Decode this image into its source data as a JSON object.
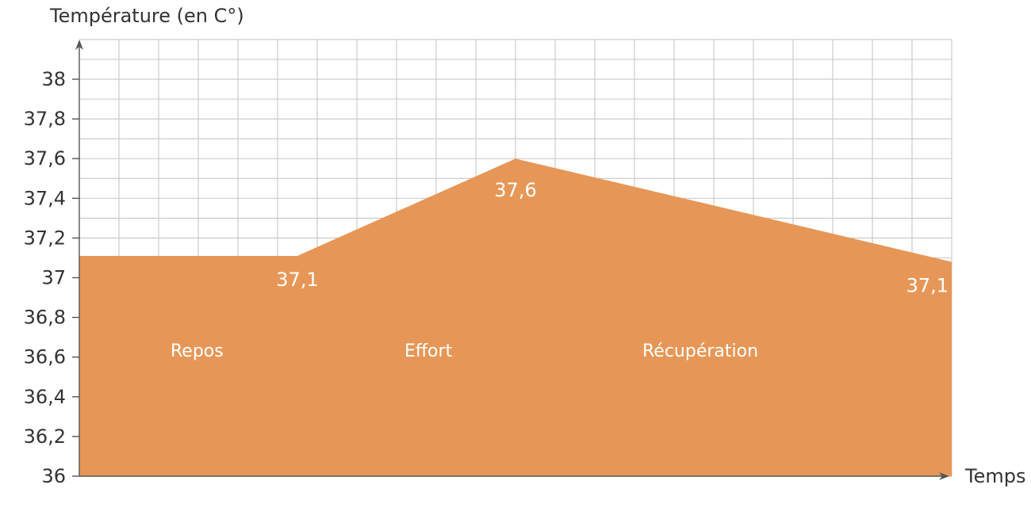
{
  "chart_data": {
    "type": "area",
    "ylabel": "Température (en C°)",
    "xlabel": "Temps",
    "ylim": [
      36,
      38
    ],
    "yticks": [
      36,
      36.2,
      36.4,
      36.6,
      36.8,
      37,
      37.2,
      37.4,
      37.6,
      37.8,
      38
    ],
    "ytick_labels": [
      "36",
      "36,2",
      "36,4",
      "36,6",
      "36,8",
      "37",
      "37,2",
      "37,4",
      "37,6",
      "37,8",
      "38"
    ],
    "grid": true,
    "fill_color": "#e69757",
    "points": [
      {
        "x": 0,
        "y": 37.11
      },
      {
        "x": 5.5,
        "y": 37.11
      },
      {
        "x": 11,
        "y": 37.6
      },
      {
        "x": 22,
        "y": 37.08
      }
    ],
    "data_labels": [
      {
        "x": 5.5,
        "text": "37,1"
      },
      {
        "x": 11,
        "text": "37,6"
      },
      {
        "x": 22,
        "text": "37,1"
      }
    ],
    "phases": [
      {
        "x": 2.6,
        "label": "Repos"
      },
      {
        "x": 8.5,
        "label": "Effort"
      },
      {
        "x": 14.5,
        "label": "Récupération"
      }
    ]
  }
}
